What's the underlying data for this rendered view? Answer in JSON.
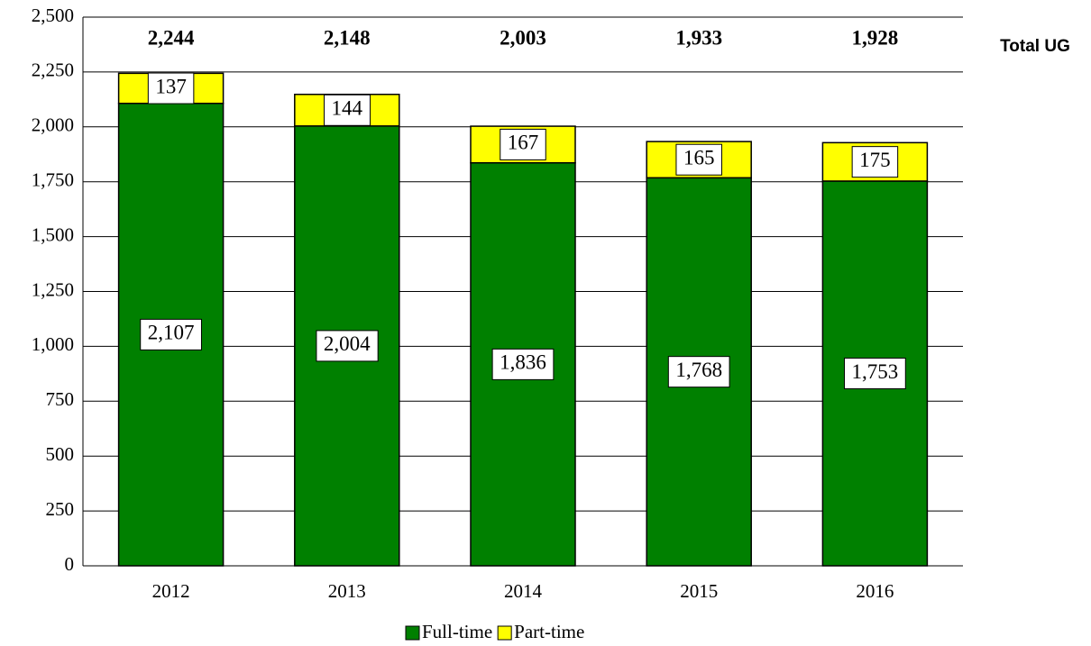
{
  "chart_data": {
    "type": "stacked_bar",
    "annotation": "Total UG",
    "categories": [
      "2012",
      "2013",
      "2014",
      "2015",
      "2016"
    ],
    "series": [
      {
        "name": "Full-time",
        "color": "#008000",
        "values": [
          2107,
          2004,
          1836,
          1768,
          1753
        ],
        "value_labels": [
          "2,107",
          "2,004",
          "1,836",
          "1,768",
          "1,753"
        ]
      },
      {
        "name": "Part-time",
        "color": "#ffff00",
        "values": [
          137,
          144,
          167,
          165,
          175
        ]
      }
    ],
    "totals": {
      "values": [
        2244,
        2148,
        2003,
        1933,
        1928
      ],
      "value_labels": [
        "2,244",
        "2,148",
        "2,003",
        "1,933",
        "1,928"
      ]
    },
    "ylim": [
      0,
      2500
    ],
    "yticks": [
      0,
      250,
      500,
      750,
      {
        "value": 1000,
        "label": "1,000"
      },
      {
        "value": 1250,
        "label": "1,250"
      },
      {
        "value": 1500,
        "label": "1,500"
      },
      {
        "value": 1750,
        "label": "1,750"
      },
      {
        "value": 2000,
        "label": "2,000"
      },
      {
        "value": 2250,
        "label": "2,250"
      },
      {
        "value": 2500,
        "label": "2,500"
      }
    ],
    "grid": true,
    "legend": "bottom"
  }
}
